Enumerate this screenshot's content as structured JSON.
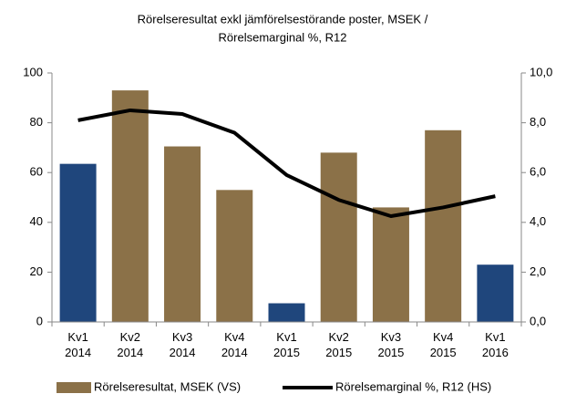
{
  "chart_data": {
    "type": "bar-line",
    "title": [
      "Rörelseresultat exkl jämförelsestörande poster, MSEK /",
      "Rörelsemarginal %, R12"
    ],
    "categories": [
      "Kv1 2014",
      "Kv2 2014",
      "Kv3 2014",
      "Kv4 2014",
      "Kv1 2015",
      "Kv2 2015",
      "Kv3 2015",
      "Kv4 2015",
      "Kv1 2016"
    ],
    "series": [
      {
        "name": "Rörelseresultat, MSEK (VS)",
        "type": "bar",
        "color": "#8b7148",
        "colors": [
          "#1f467c",
          "#8b7148",
          "#8b7148",
          "#8b7148",
          "#1f467c",
          "#8b7148",
          "#8b7148",
          "#8b7148",
          "#1f467c"
        ],
        "values": [
          63.5,
          93,
          70.5,
          53,
          7.5,
          68,
          46,
          77,
          23
        ]
      },
      {
        "name": "Rörelsemarginal %, R12 (HS)",
        "type": "line",
        "color": "#000000",
        "axis": "y2",
        "values": [
          8.1,
          8.5,
          8.35,
          7.6,
          5.9,
          4.9,
          4.25,
          4.6,
          5.05
        ]
      }
    ],
    "ylim": [
      0,
      100
    ],
    "yticks": [
      0,
      20,
      40,
      60,
      80,
      100
    ],
    "y2lim": [
      0,
      10
    ],
    "y2ticks": [
      {
        "value": 0,
        "label": "0,0"
      },
      {
        "value": 2,
        "label": "2,0"
      },
      {
        "value": 4,
        "label": "4,0"
      },
      {
        "value": 6,
        "label": "6,0"
      },
      {
        "value": 8,
        "label": "8,0"
      },
      {
        "value": 10,
        "label": "10,0"
      }
    ],
    "grid": false,
    "legend": "bottom"
  }
}
